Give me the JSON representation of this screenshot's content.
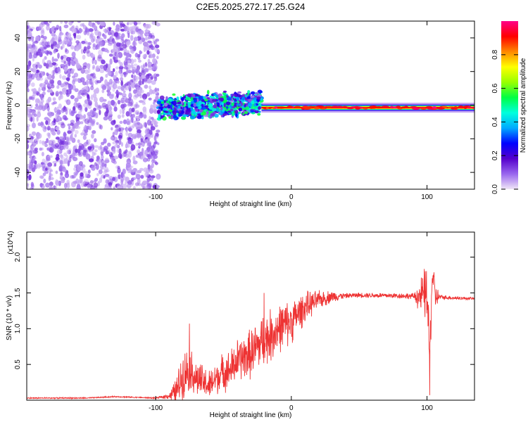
{
  "chart_data": [
    {
      "type": "heatmap",
      "title": "C2E5.2025.272.17.25.G24",
      "xlabel": "Height of straight line (km)",
      "ylabel": "Frequency (Hz)",
      "xlim": [
        -195,
        135
      ],
      "ylim": [
        -50,
        50
      ],
      "xticks": [
        -100,
        0,
        100
      ],
      "xtick_labels": [
        "-100",
        "0",
        "100"
      ],
      "yticks": [
        -40,
        -20,
        0,
        20,
        40
      ],
      "ytick_labels": [
        "-40",
        "-20",
        "0",
        "20",
        "40"
      ],
      "colorbar": {
        "label": "Normalized spectral amplitude",
        "range": [
          0,
          1
        ],
        "ticks": [
          0.0,
          0.2,
          0.4,
          0.6,
          0.8
        ],
        "tick_labels": [
          "0.0",
          "0.2",
          "0.4",
          "0.6",
          "0.8"
        ],
        "colormap": [
          "#f0e6f7",
          "#9966ee",
          "#5500cc",
          "#0000ff",
          "#00aaff",
          "#00ffdd",
          "#00ff44",
          "#99ff00",
          "#ffff00",
          "#ff8800",
          "#ff0000",
          "#ff0088"
        ]
      },
      "regions": [
        {
          "name": "noise",
          "x_range": [
            -195,
            -98
          ],
          "y_range": [
            -50,
            50
          ],
          "amplitude": 0.1
        },
        {
          "name": "transition",
          "x_range": [
            -98,
            -22
          ],
          "center_frequency": 0,
          "amplitude": 0.35
        },
        {
          "name": "carrier",
          "x_range": [
            -22,
            135
          ],
          "center_frequency": -1.5,
          "amplitude": 0.9
        }
      ]
    },
    {
      "type": "line",
      "title": "",
      "xlabel": "Height of straight line (km)",
      "ylabel": "SNR (10 * v/v)",
      "y_multiplier": "(x10^4)",
      "xlim": [
        -195,
        135
      ],
      "ylim": [
        0,
        2.35
      ],
      "xticks": [
        -100,
        0,
        100
      ],
      "xtick_labels": [
        "-100",
        "0",
        "100"
      ],
      "yticks": [
        0.5,
        1.0,
        1.5,
        2.0
      ],
      "ytick_labels": [
        "0.5",
        "1.0",
        "1.5",
        "2.0"
      ],
      "series": [
        {
          "name": "SNR",
          "color": "#ee3333",
          "envelope": {
            "x": [
              -195,
              -150,
              -130,
              -100,
              -90,
              -85,
              -80,
              -75,
              -70,
              -65,
              -60,
              -55,
              -50,
              -45,
              -40,
              -35,
              -30,
              -25,
              -20,
              -15,
              -10,
              -5,
              0,
              10,
              20,
              30,
              50,
              80,
              95,
              100,
              102,
              104,
              106,
              110,
              120,
              135
            ],
            "y": [
              0.03,
              0.03,
              0.05,
              0.03,
              0.06,
              0.12,
              0.35,
              0.45,
              0.3,
              0.25,
              0.2,
              0.32,
              0.4,
              0.42,
              0.55,
              0.6,
              0.65,
              0.75,
              0.85,
              0.9,
              1.0,
              1.05,
              1.1,
              1.3,
              1.4,
              1.45,
              1.47,
              1.46,
              1.45,
              1.5,
              0.6,
              1.8,
              1.45,
              1.44,
              1.43,
              1.42
            ]
          },
          "noise_amplitude": {
            "x": [
              -195,
              -100,
              -90,
              -80,
              -70,
              -60,
              -40,
              -20,
              0,
              20,
              40,
              90,
              100,
              110,
              135
            ],
            "y": [
              0.01,
              0.01,
              0.05,
              0.4,
              0.3,
              0.25,
              0.35,
              0.45,
              0.35,
              0.15,
              0.04,
              0.05,
              0.5,
              0.04,
              0.02
            ]
          },
          "annotations": [
            {
              "x": -75,
              "y": 1.07
            },
            {
              "x": -20,
              "y": 1.5
            },
            {
              "x": 102,
              "y": 2.3
            },
            {
              "x": 102,
              "y": 0.07
            }
          ]
        }
      ]
    }
  ]
}
